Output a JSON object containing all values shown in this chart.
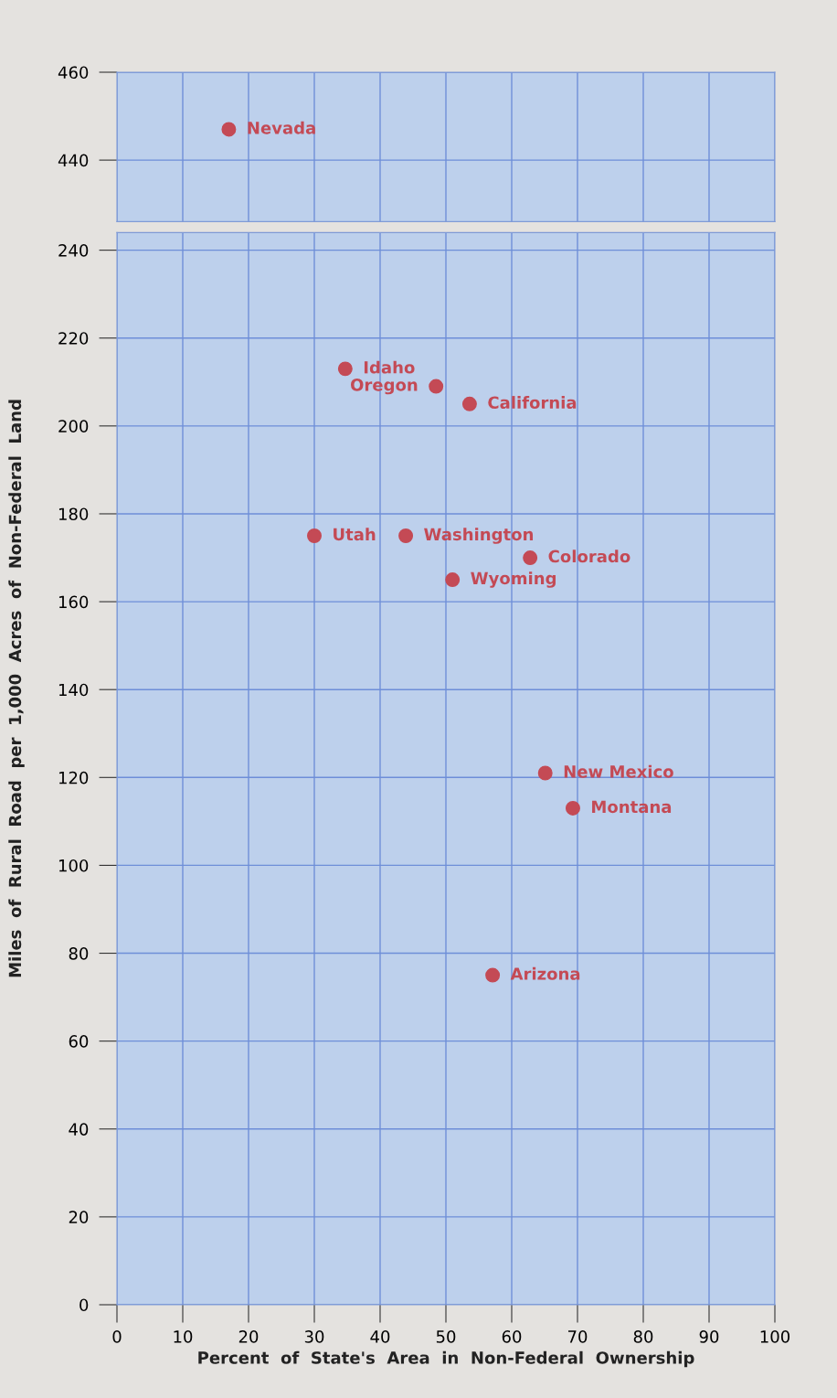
{
  "chart_data": [
    {
      "type": "scatter",
      "xlim": [
        0,
        100
      ],
      "xticks": [
        0,
        10,
        20,
        30,
        40,
        50,
        60,
        70,
        80,
        90,
        100
      ],
      "ylim": [
        426,
        460
      ],
      "yticks": [
        440,
        460
      ],
      "tick_labels": "y",
      "grid": true,
      "marker": "circle",
      "series": [
        {
          "color": "#c44a55",
          "x": [
            17
          ],
          "values": [
            447
          ]
        }
      ],
      "annotations": [
        {
          "text": "Nevada",
          "x": 17,
          "y": 447
        }
      ]
    },
    {
      "type": "scatter",
      "xlabel": "Percent  of  State's  Area  in  Non-Federal  Ownership",
      "ylabel": "Miles  of  Rural  Road  per  1,000  Acres  of  Non-Federal  Land",
      "xlim": [
        0,
        100
      ],
      "xticks": [
        0,
        10,
        20,
        30,
        40,
        50,
        60,
        70,
        80,
        90,
        100
      ],
      "ylim": [
        0,
        244
      ],
      "yticks": [
        0,
        20,
        40,
        60,
        80,
        100,
        120,
        140,
        160,
        180,
        200,
        220,
        240
      ],
      "grid": true,
      "marker": "circle",
      "series": [
        {
          "color": "#c44a55",
          "x": [
            34.7,
            48.5,
            53.6,
            30,
            43.9,
            62.8,
            51,
            65.1,
            69.3,
            57.1
          ],
          "values": [
            213,
            209,
            205,
            175,
            175,
            170,
            165,
            121,
            113,
            75
          ]
        }
      ],
      "annotations": [
        {
          "text": "Idaho",
          "x": 34.7,
          "y": 213
        },
        {
          "text": "Oregon",
          "x": 48.5,
          "y": 209
        },
        {
          "text": "California",
          "x": 53.6,
          "y": 205
        },
        {
          "text": "Utah",
          "x": 30,
          "y": 175
        },
        {
          "text": "Washington",
          "x": 43.9,
          "y": 175
        },
        {
          "text": "Colorado",
          "x": 62.8,
          "y": 170
        },
        {
          "text": "Wyoming",
          "x": 51,
          "y": 165
        },
        {
          "text": "New Mexico",
          "x": 65.1,
          "y": 121
        },
        {
          "text": "Montana",
          "x": 69.3,
          "y": 113
        },
        {
          "text": "Arizona",
          "x": 57.1,
          "y": 75
        }
      ]
    }
  ]
}
